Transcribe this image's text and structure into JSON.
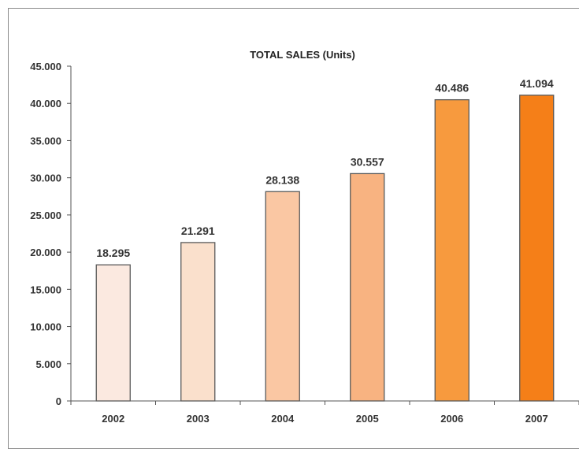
{
  "chart_data": {
    "type": "bar",
    "title": "TOTAL SALES (Units)",
    "xlabel": "",
    "ylabel": "",
    "categories": [
      "2002",
      "2003",
      "2004",
      "2005",
      "2006",
      "2007"
    ],
    "values": [
      18295,
      21291,
      28138,
      30557,
      40486,
      41094
    ],
    "value_labels": [
      "18.295",
      "21.291",
      "28.138",
      "30.557",
      "40.486",
      "41.094"
    ],
    "ylim": [
      0,
      45000
    ],
    "yticks": [
      0,
      5000,
      10000,
      15000,
      20000,
      25000,
      30000,
      35000,
      40000,
      45000
    ],
    "ytick_labels": [
      "0",
      "5.000",
      "10.000",
      "15.000",
      "20.000",
      "25.000",
      "30.000",
      "35.000",
      "40.000",
      "45.000"
    ],
    "grid": false,
    "legend": "none",
    "colors": [
      "#fbe9e0",
      "#fae0cc",
      "#fac7a3",
      "#f8b381",
      "#f79a3e",
      "#f57f18"
    ],
    "edge_color": "#595959"
  }
}
